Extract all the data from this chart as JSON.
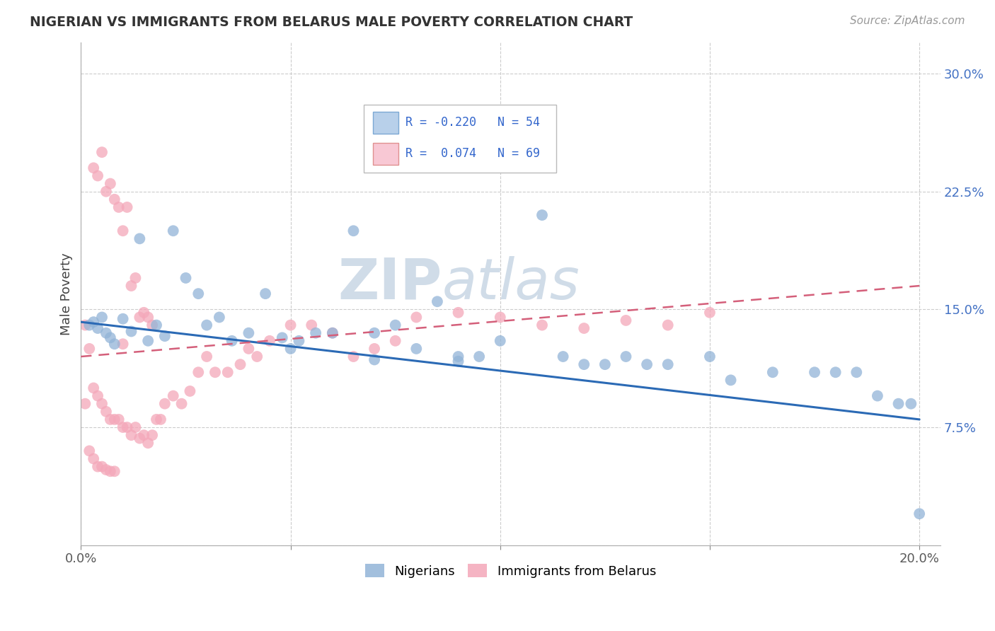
{
  "title": "NIGERIAN VS IMMIGRANTS FROM BELARUS MALE POVERTY CORRELATION CHART",
  "source": "Source: ZipAtlas.com",
  "ylabel": "Male Poverty",
  "xlim": [
    0.0,
    0.205
  ],
  "ylim": [
    0.0,
    0.32
  ],
  "xticks": [
    0.0,
    0.05,
    0.1,
    0.15,
    0.2
  ],
  "xtick_labels": [
    "0.0%",
    "",
    "",
    "",
    "20.0%"
  ],
  "yticks": [
    0.075,
    0.15,
    0.225,
    0.3
  ],
  "ytick_labels": [
    "7.5%",
    "15.0%",
    "22.5%",
    "30.0%"
  ],
  "blue_color": "#92b4d7",
  "pink_color": "#f4a7b9",
  "blue_line_color": "#2b6ab5",
  "pink_line_color": "#d45f7a",
  "blue_fill": "#b8d0ea",
  "pink_fill": "#f8c8d4",
  "watermark_color": "#d0dce8",
  "background_color": "#ffffff",
  "grid_color": "#cccccc",
  "blue_line_start_y": 0.142,
  "blue_line_end_y": 0.08,
  "pink_line_start_y": 0.12,
  "pink_line_end_y": 0.165,
  "nigerians_x": [
    0.002,
    0.003,
    0.004,
    0.005,
    0.006,
    0.007,
    0.008,
    0.01,
    0.012,
    0.014,
    0.016,
    0.018,
    0.02,
    0.022,
    0.025,
    0.028,
    0.03,
    0.033,
    0.036,
    0.04,
    0.044,
    0.048,
    0.052,
    0.056,
    0.06,
    0.065,
    0.07,
    0.075,
    0.08,
    0.085,
    0.09,
    0.095,
    0.1,
    0.105,
    0.11,
    0.115,
    0.12,
    0.125,
    0.13,
    0.135,
    0.14,
    0.15,
    0.155,
    0.165,
    0.175,
    0.18,
    0.185,
    0.19,
    0.195,
    0.198,
    0.2,
    0.05,
    0.07,
    0.09
  ],
  "nigerians_y": [
    0.14,
    0.142,
    0.138,
    0.145,
    0.135,
    0.132,
    0.128,
    0.144,
    0.136,
    0.195,
    0.13,
    0.14,
    0.133,
    0.2,
    0.17,
    0.16,
    0.14,
    0.145,
    0.13,
    0.135,
    0.16,
    0.132,
    0.13,
    0.135,
    0.135,
    0.2,
    0.135,
    0.14,
    0.125,
    0.155,
    0.12,
    0.12,
    0.13,
    0.275,
    0.21,
    0.12,
    0.115,
    0.115,
    0.12,
    0.115,
    0.115,
    0.12,
    0.105,
    0.11,
    0.11,
    0.11,
    0.11,
    0.095,
    0.09,
    0.09,
    0.02,
    0.125,
    0.118,
    0.117
  ],
  "belarus_x": [
    0.001,
    0.001,
    0.002,
    0.002,
    0.003,
    0.003,
    0.004,
    0.004,
    0.005,
    0.005,
    0.006,
    0.006,
    0.007,
    0.007,
    0.008,
    0.008,
    0.009,
    0.01,
    0.01,
    0.011,
    0.012,
    0.013,
    0.014,
    0.015,
    0.016,
    0.017,
    0.018,
    0.019,
    0.02,
    0.022,
    0.024,
    0.026,
    0.028,
    0.03,
    0.032,
    0.035,
    0.038,
    0.04,
    0.042,
    0.045,
    0.05,
    0.055,
    0.06,
    0.065,
    0.07,
    0.075,
    0.08,
    0.09,
    0.1,
    0.11,
    0.12,
    0.13,
    0.14,
    0.15,
    0.003,
    0.004,
    0.005,
    0.006,
    0.007,
    0.008,
    0.009,
    0.01,
    0.011,
    0.012,
    0.013,
    0.014,
    0.015,
    0.016,
    0.017
  ],
  "belarus_y": [
    0.14,
    0.09,
    0.125,
    0.06,
    0.1,
    0.055,
    0.095,
    0.05,
    0.09,
    0.05,
    0.085,
    0.048,
    0.08,
    0.047,
    0.08,
    0.047,
    0.08,
    0.128,
    0.075,
    0.075,
    0.07,
    0.075,
    0.068,
    0.07,
    0.065,
    0.07,
    0.08,
    0.08,
    0.09,
    0.095,
    0.09,
    0.098,
    0.11,
    0.12,
    0.11,
    0.11,
    0.115,
    0.125,
    0.12,
    0.13,
    0.14,
    0.14,
    0.135,
    0.12,
    0.125,
    0.13,
    0.145,
    0.148,
    0.145,
    0.14,
    0.138,
    0.143,
    0.14,
    0.148,
    0.24,
    0.235,
    0.25,
    0.225,
    0.23,
    0.22,
    0.215,
    0.2,
    0.215,
    0.165,
    0.17,
    0.145,
    0.148,
    0.145,
    0.14
  ]
}
